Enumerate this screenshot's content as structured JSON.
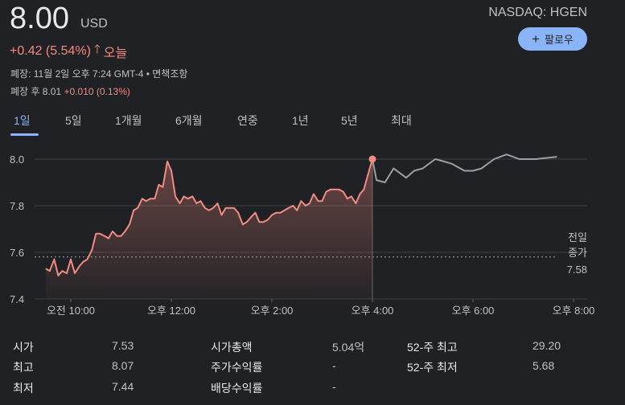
{
  "quote": {
    "price": "8.00",
    "currency": "USD",
    "exchange_ticker": "NASDAQ: HGEN",
    "follow_label": "팔로우",
    "change": "+0.42 (5.54%)",
    "change_period": "오늘",
    "close_info": "폐장: 11월 2일 오후 7:24 GMT-4 • 면책조항",
    "after_hours_label": "폐장 후 8.01",
    "after_hours_change": "+0.010 (0.13%)"
  },
  "range_tabs": [
    "1일",
    "5일",
    "1개월",
    "6개월",
    "연중",
    "1년",
    "5년",
    "최대"
  ],
  "active_tab": "1일",
  "colors": {
    "accent": "#8ab4f8",
    "positive": "#f28b82",
    "background": "#202124",
    "after_hours_line": "#9aa0a6"
  },
  "chart_data": {
    "type": "line",
    "ylim": [
      7.4,
      8.05
    ],
    "y_ticks": [
      "8.0",
      "7.8",
      "7.6",
      "7.4"
    ],
    "x_ticks": [
      "오전 10:00",
      "오후 12:00",
      "오후 2:00",
      "오후 4:00",
      "오후 6:00",
      "오후 8:00"
    ],
    "prev_close": 7.58,
    "prev_close_label": [
      "전일",
      "종가",
      "7.58"
    ],
    "grid": true,
    "series": [
      {
        "session": "regular",
        "x": [
          9.5,
          9.58,
          9.67,
          9.75,
          9.83,
          9.92,
          10.0,
          10.08,
          10.17,
          10.25,
          10.33,
          10.42,
          10.5,
          10.58,
          10.67,
          10.75,
          10.83,
          10.92,
          11.0,
          11.08,
          11.17,
          11.25,
          11.33,
          11.42,
          11.5,
          11.58,
          11.67,
          11.75,
          11.83,
          11.92,
          12.0,
          12.08,
          12.17,
          12.25,
          12.33,
          12.42,
          12.5,
          12.58,
          12.67,
          12.75,
          12.83,
          12.92,
          13.0,
          13.08,
          13.17,
          13.25,
          13.33,
          13.42,
          13.5,
          13.58,
          13.67,
          13.75,
          13.83,
          13.92,
          14.0,
          14.08,
          14.17,
          14.25,
          14.33,
          14.42,
          14.5,
          14.58,
          14.67,
          14.75,
          14.83,
          14.92,
          15.0,
          15.08,
          15.17,
          15.25,
          15.33,
          15.42,
          15.5,
          15.58,
          15.67,
          15.75,
          15.83,
          15.92,
          16.0
        ],
        "y": [
          7.53,
          7.52,
          7.57,
          7.5,
          7.52,
          7.51,
          7.57,
          7.51,
          7.54,
          7.56,
          7.57,
          7.61,
          7.68,
          7.68,
          7.67,
          7.66,
          7.69,
          7.67,
          7.67,
          7.69,
          7.72,
          7.78,
          7.79,
          7.83,
          7.82,
          7.83,
          7.83,
          7.89,
          7.88,
          7.99,
          7.95,
          7.84,
          7.81,
          7.84,
          7.83,
          7.84,
          7.81,
          7.82,
          7.79,
          7.78,
          7.79,
          7.81,
          7.76,
          7.79,
          7.79,
          7.79,
          7.77,
          7.72,
          7.73,
          7.75,
          7.77,
          7.73,
          7.73,
          7.74,
          7.76,
          7.77,
          7.77,
          7.78,
          7.79,
          7.8,
          7.78,
          7.82,
          7.8,
          7.81,
          7.85,
          7.82,
          7.82,
          7.86,
          7.87,
          7.87,
          7.87,
          7.86,
          7.83,
          7.84,
          7.81,
          7.85,
          7.87,
          7.94,
          8.0
        ]
      },
      {
        "session": "after-hours",
        "x": [
          16.0,
          16.08,
          16.25,
          16.42,
          16.67,
          16.83,
          17.0,
          17.25,
          17.42,
          17.58,
          17.83,
          18.0,
          18.17,
          18.42,
          18.67,
          18.92,
          19.25,
          19.67
        ],
        "y": [
          8.0,
          7.91,
          7.9,
          7.96,
          7.92,
          7.95,
          7.96,
          8.0,
          7.99,
          7.98,
          7.95,
          7.95,
          7.96,
          8.0,
          8.02,
          8.0,
          8.0,
          8.01
        ]
      }
    ]
  },
  "stats": [
    [
      {
        "label": "시가",
        "value": "7.53"
      },
      {
        "label": "시가총액",
        "value": "5.04억"
      },
      {
        "label": "52-주 최고",
        "value": "29.20"
      }
    ],
    [
      {
        "label": "최고",
        "value": "8.07"
      },
      {
        "label": "주가수익률",
        "value": "-"
      },
      {
        "label": "52-주 최저",
        "value": "5.68"
      }
    ],
    [
      {
        "label": "최저",
        "value": "7.44"
      },
      {
        "label": "배당수익률",
        "value": "-"
      }
    ]
  ]
}
